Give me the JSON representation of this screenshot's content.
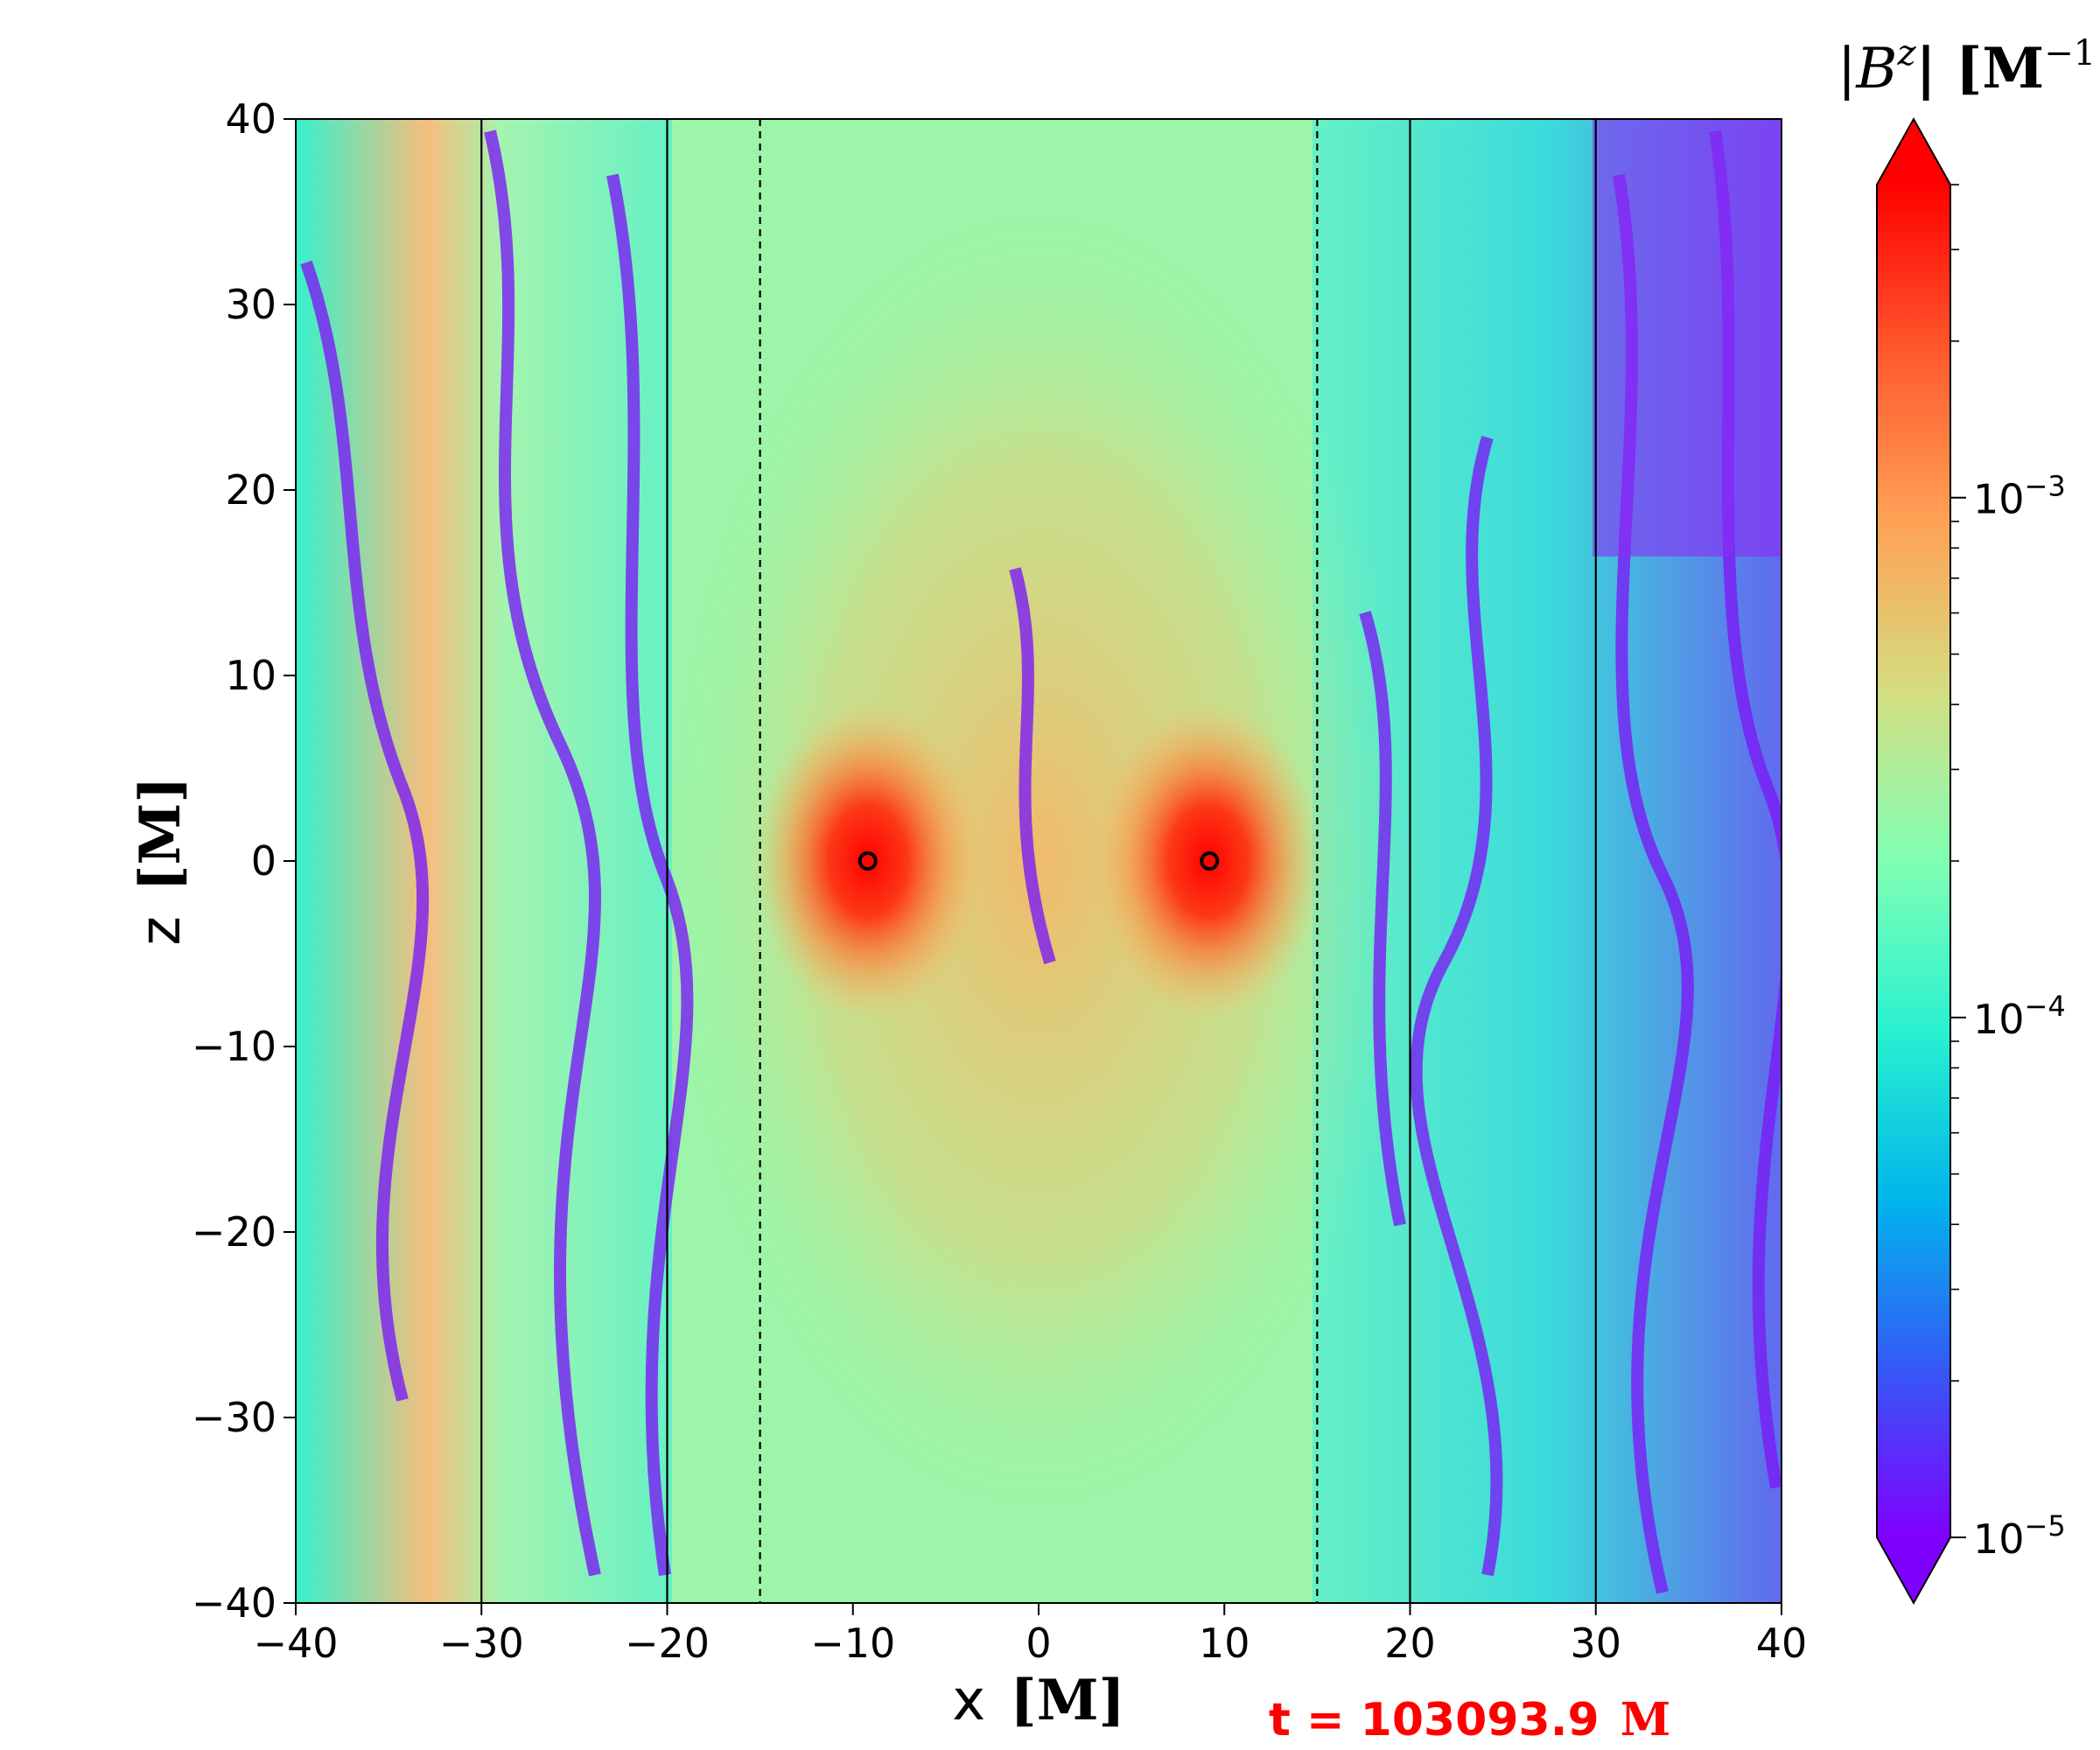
{
  "chart_data": {
    "type": "heatmap",
    "title": "",
    "xlabel": "x",
    "xlabel_unit": "[M]",
    "ylabel": "z",
    "ylabel_unit": "[M]",
    "xlim": [
      -40,
      40
    ],
    "ylim": [
      -40,
      40
    ],
    "x_ticks": [
      -40,
      -30,
      -20,
      -10,
      0,
      10,
      20,
      30,
      40
    ],
    "x_tick_labels": [
      "−40",
      "−30",
      "−20",
      "−10",
      "0",
      "10",
      "20",
      "30",
      "40"
    ],
    "y_ticks": [
      -40,
      -30,
      -20,
      -10,
      0,
      10,
      20,
      30,
      40
    ],
    "y_tick_labels": [
      "−40",
      "−30",
      "−20",
      "−10",
      "0",
      "10",
      "20",
      "30",
      "40"
    ],
    "colormap": "rainbow",
    "colorbar": {
      "label": "|B",
      "label_sup": "z",
      "label_unit": "| [M",
      "label_unit_sup": "−1",
      "label_close": "]",
      "scale": "log",
      "range": [
        1e-05,
        0.004
      ],
      "ticks": [
        1e-05,
        0.0001,
        0.001
      ],
      "tick_base": "10",
      "tick_exponents": [
        "−5",
        "−4",
        "−3"
      ],
      "extend": "both",
      "colors": [
        "#8000ff",
        "#3559f5",
        "#00b5eb",
        "#2af1d0",
        "#80ffb4",
        "#d4dd80",
        "#ffa256",
        "#ff5a2e",
        "#ff0000"
      ]
    },
    "solid_vertical_lines_x": [
      -30,
      -20,
      20,
      30
    ],
    "dashed_vertical_lines_x": [
      -15,
      15
    ],
    "black_hole_markers": [
      {
        "x": -9.2,
        "z": 0
      },
      {
        "x": 9.2,
        "z": 0
      }
    ],
    "annotation": {
      "prefix": "t = 103093.9",
      "unit": "M",
      "color": "#ff0000"
    }
  }
}
